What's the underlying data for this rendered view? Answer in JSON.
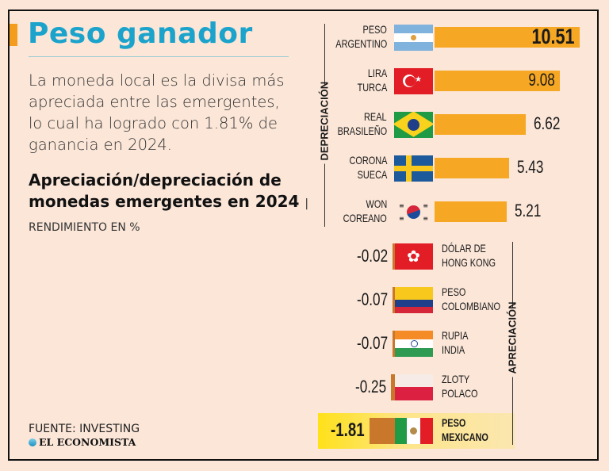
{
  "header": {
    "title": "Peso ganador",
    "lede": "La moneda local es la divisa más apreciada entre las emergentes, lo cual ha logrado con 1.81% de ganancia en 2024.",
    "subtitle": "Apreciación/depreciación de monedas emergentes en 2024",
    "separator": "|",
    "unit": "RENDIMIENTO EN %"
  },
  "footer": {
    "source": "FUENTE: INVESTING",
    "brand": "EL ECONOMISTA"
  },
  "colors": {
    "background": "#fbe6d8",
    "title": "#1ba3cb",
    "bar_positive": "#f6a723",
    "bar_negative": "#c9772a",
    "highlight": "#ffe11a"
  },
  "chart_data": {
    "type": "bar",
    "orientation": "horizontal",
    "title": "Apreciación/depreciación de monedas emergentes en 2024",
    "unit": "RENDIMIENTO EN %",
    "group_labels": {
      "positive": "DEPRECIACIÓN",
      "negative": "APRECIACIÓN"
    },
    "categories": [
      {
        "line1": "PESO",
        "line2": "ARGENTINO",
        "flag": "argentina-flag",
        "value": 10.51,
        "label": "10.51"
      },
      {
        "line1": "LIRA",
        "line2": "TURCA",
        "flag": "turkey-flag",
        "value": 9.08,
        "label": "9.08"
      },
      {
        "line1": "REAL",
        "line2": "BRASILEÑO",
        "flag": "brazil-flag",
        "value": 6.62,
        "label": "6.62"
      },
      {
        "line1": "CORONA",
        "line2": "SUECA",
        "flag": "sweden-flag",
        "value": 5.43,
        "label": "5.43"
      },
      {
        "line1": "WON",
        "line2": "COREANO",
        "flag": "korea-flag",
        "value": 5.21,
        "label": "5.21"
      },
      {
        "line1": "DÓLAR DE",
        "line2": "HONG KONG",
        "flag": "hong-kong-flag",
        "value": -0.02,
        "label": "-0.02"
      },
      {
        "line1": "PESO",
        "line2": "COLOMBIANO",
        "flag": "colombia-flag",
        "value": -0.07,
        "label": "-0.07"
      },
      {
        "line1": "RUPIA",
        "line2": "INDIA",
        "flag": "india-flag",
        "value": -0.07,
        "label": "-0.07"
      },
      {
        "line1": "ZLOTY",
        "line2": "POLACO",
        "flag": "poland-flag",
        "value": -0.25,
        "label": "-0.25"
      },
      {
        "line1": "PESO",
        "line2": "MEXICANO",
        "flag": "mexico-flag",
        "value": -1.81,
        "label": "-1.81",
        "highlight": true
      }
    ]
  }
}
